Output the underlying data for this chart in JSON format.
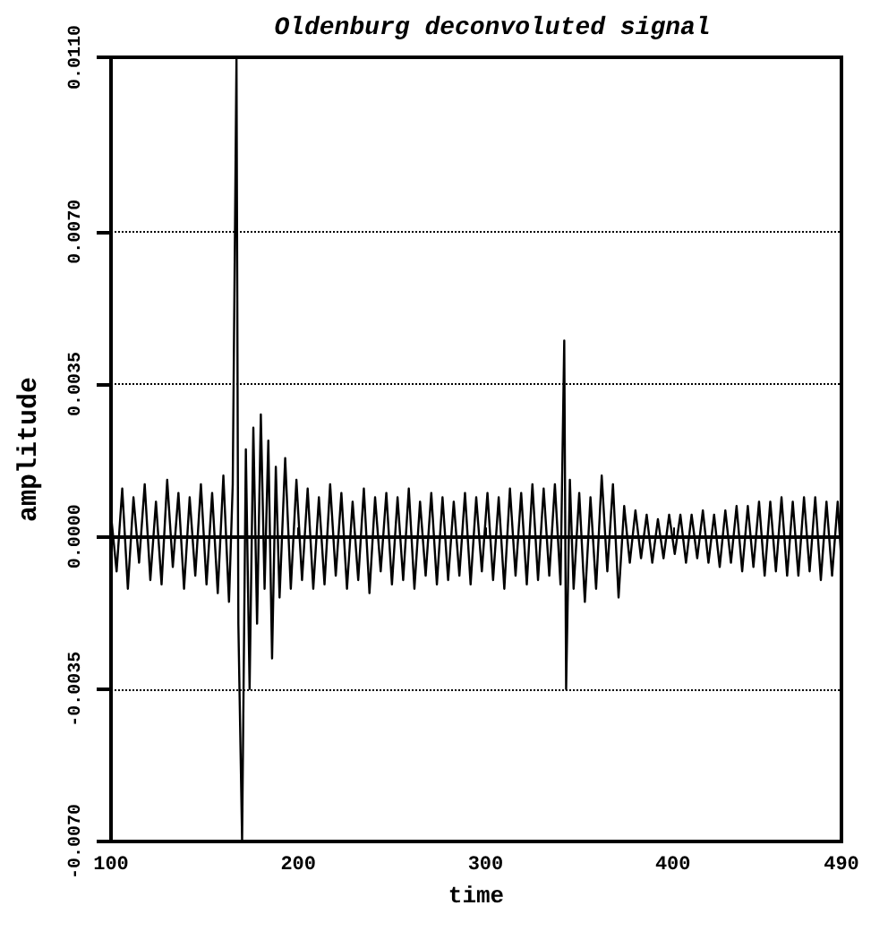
{
  "chart_data": {
    "type": "line",
    "title": "Oldenburg deconvoluted signal",
    "xlabel": "time",
    "ylabel": "amplitude",
    "xlim": [
      100,
      490
    ],
    "xticks": [
      100,
      200,
      300,
      400,
      490
    ],
    "ylim": [
      -0.007,
      0.011
    ],
    "yticks": [
      {
        "value": -0.007,
        "label": "-0.0070"
      },
      {
        "value": -0.0035,
        "label": "-0.0035"
      },
      {
        "value": 0,
        "label": "0.0000"
      },
      {
        "value": 0.0035,
        "label": "0.0035"
      },
      {
        "value": 0.007,
        "label": "0.0070"
      },
      {
        "value": 0.011,
        "label": "0.0110"
      }
    ],
    "grid": "y",
    "marker": "none",
    "line_style": "solid",
    "series": [
      {
        "color": "#000000",
        "x": [
          100,
          103,
          106,
          109,
          112,
          115,
          118,
          121,
          124,
          127,
          130,
          133,
          136,
          139,
          142,
          145,
          148,
          151,
          154,
          157,
          160,
          163,
          165,
          167,
          168,
          170,
          172,
          174,
          176,
          178,
          180,
          182,
          184,
          186,
          188,
          190,
          193,
          196,
          199,
          202,
          205,
          208,
          211,
          214,
          217,
          220,
          223,
          226,
          229,
          232,
          235,
          238,
          241,
          244,
          247,
          250,
          253,
          256,
          259,
          262,
          265,
          268,
          271,
          274,
          277,
          280,
          283,
          286,
          289,
          292,
          295,
          298,
          301,
          304,
          307,
          310,
          313,
          316,
          319,
          322,
          325,
          328,
          331,
          334,
          337,
          340,
          342,
          343,
          345,
          347,
          350,
          353,
          356,
          359,
          362,
          365,
          368,
          371,
          374,
          377,
          380,
          383,
          386,
          389,
          392,
          395,
          398,
          401,
          404,
          407,
          410,
          413,
          416,
          419,
          422,
          425,
          428,
          431,
          434,
          437,
          440,
          443,
          446,
          449,
          452,
          455,
          458,
          461,
          464,
          467,
          470,
          473,
          476,
          479,
          482,
          485,
          488,
          490
        ],
        "values": [
          0.0005,
          -0.0008,
          0.0011,
          -0.0012,
          0.0009,
          -0.0006,
          0.0012,
          -0.001,
          0.0008,
          -0.0011,
          0.0013,
          -0.0007,
          0.001,
          -0.0012,
          0.0009,
          -0.0009,
          0.0012,
          -0.0011,
          0.001,
          -0.0013,
          0.0014,
          -0.0015,
          0.0012,
          0.011,
          -0.002,
          -0.007,
          0.002,
          -0.0035,
          0.0025,
          -0.002,
          0.0028,
          -0.0012,
          0.0022,
          -0.0028,
          0.0016,
          -0.0014,
          0.0018,
          -0.0012,
          0.0013,
          -0.001,
          0.0011,
          -0.0012,
          0.0009,
          -0.0011,
          0.0012,
          -0.0009,
          0.001,
          -0.0012,
          0.0008,
          -0.001,
          0.0011,
          -0.0013,
          0.0009,
          -0.0008,
          0.001,
          -0.0011,
          0.0009,
          -0.001,
          0.0011,
          -0.0012,
          0.0008,
          -0.0009,
          0.001,
          -0.0011,
          0.0009,
          -0.001,
          0.0008,
          -0.0009,
          0.001,
          -0.0011,
          0.0009,
          -0.0008,
          0.001,
          -0.001,
          0.0009,
          -0.0012,
          0.0011,
          -0.0009,
          0.001,
          -0.0011,
          0.0012,
          -0.001,
          0.0011,
          -0.0009,
          0.0012,
          -0.0011,
          0.0045,
          -0.0035,
          0.0013,
          -0.0012,
          0.001,
          -0.0015,
          0.0009,
          -0.0012,
          0.0014,
          -0.0008,
          0.0012,
          -0.0014,
          0.0007,
          -0.0006,
          0.0006,
          -0.0005,
          0.0005,
          -0.0006,
          0.0004,
          -0.0005,
          0.0005,
          -0.0004,
          0.0005,
          -0.0006,
          0.0005,
          -0.0005,
          0.0006,
          -0.0006,
          0.0005,
          -0.0007,
          0.0006,
          -0.0006,
          0.0007,
          -0.0008,
          0.0007,
          -0.0007,
          0.0008,
          -0.0009,
          0.0008,
          -0.0008,
          0.0009,
          -0.0009,
          0.0008,
          -0.0009,
          0.0009,
          -0.0008,
          0.0009,
          -0.001,
          0.0008,
          -0.0009,
          0.0008,
          -0.0006
        ]
      }
    ]
  }
}
